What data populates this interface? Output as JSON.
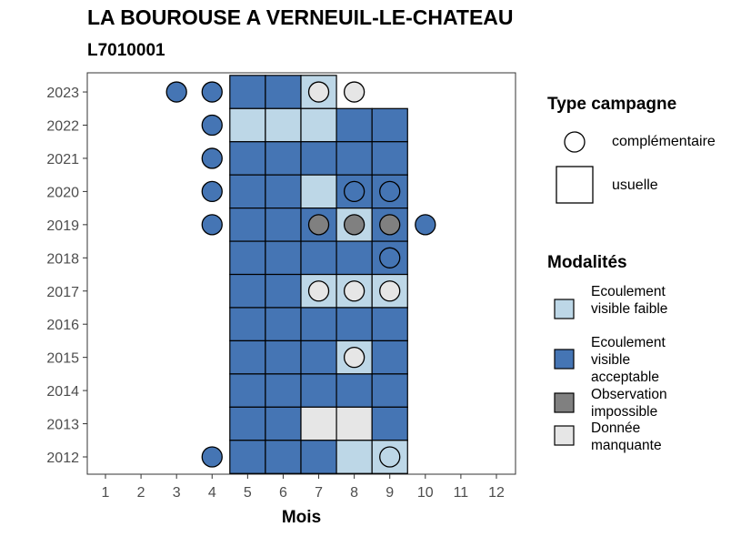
{
  "title": "LA BOUROUSE A VERNEUIL-LE-CHATEAU",
  "subtitle": "L7010001",
  "colors": {
    "faible": "#bdd7e7",
    "acceptable": "#4575b4",
    "impossible": "#808080",
    "manquante": "#e6e6e6"
  },
  "legend": {
    "type_title": "Type campagne",
    "type_items": [
      {
        "key": "complementaire",
        "shape": "circle",
        "label": "complémentaire"
      },
      {
        "key": "usuelle",
        "shape": "square",
        "label": "usuelle"
      }
    ],
    "mod_title": "Modalités",
    "mod_items": [
      {
        "key": "faible",
        "label": "Ecoulement visible faible"
      },
      {
        "key": "acceptable",
        "label": "Ecoulement visible acceptable"
      },
      {
        "key": "impossible",
        "label": "Observation impossible"
      },
      {
        "key": "manquante",
        "label": "Donnée manquante"
      }
    ]
  },
  "chart_data": {
    "type": "heatmap",
    "xlabel": "Mois",
    "ylabel": "",
    "x_ticks": [
      1,
      2,
      3,
      4,
      5,
      6,
      7,
      8,
      9,
      10,
      11,
      12
    ],
    "y_ticks": [
      2012,
      2013,
      2014,
      2015,
      2016,
      2017,
      2018,
      2019,
      2020,
      2021,
      2022,
      2023
    ],
    "grid": false,
    "legend_position": "right",
    "usuelle": [
      {
        "year": 2023,
        "month": 5,
        "mod": "acceptable"
      },
      {
        "year": 2023,
        "month": 6,
        "mod": "acceptable"
      },
      {
        "year": 2023,
        "month": 7,
        "mod": "faible"
      },
      {
        "year": 2022,
        "month": 5,
        "mod": "faible"
      },
      {
        "year": 2022,
        "month": 6,
        "mod": "faible"
      },
      {
        "year": 2022,
        "month": 7,
        "mod": "faible"
      },
      {
        "year": 2022,
        "month": 8,
        "mod": "acceptable"
      },
      {
        "year": 2022,
        "month": 9,
        "mod": "acceptable"
      },
      {
        "year": 2021,
        "month": 5,
        "mod": "acceptable"
      },
      {
        "year": 2021,
        "month": 6,
        "mod": "acceptable"
      },
      {
        "year": 2021,
        "month": 7,
        "mod": "acceptable"
      },
      {
        "year": 2021,
        "month": 8,
        "mod": "acceptable"
      },
      {
        "year": 2021,
        "month": 9,
        "mod": "acceptable"
      },
      {
        "year": 2020,
        "month": 5,
        "mod": "acceptable"
      },
      {
        "year": 2020,
        "month": 6,
        "mod": "acceptable"
      },
      {
        "year": 2020,
        "month": 7,
        "mod": "faible"
      },
      {
        "year": 2020,
        "month": 8,
        "mod": "acceptable"
      },
      {
        "year": 2020,
        "month": 9,
        "mod": "acceptable"
      },
      {
        "year": 2019,
        "month": 5,
        "mod": "acceptable"
      },
      {
        "year": 2019,
        "month": 6,
        "mod": "acceptable"
      },
      {
        "year": 2019,
        "month": 7,
        "mod": "acceptable"
      },
      {
        "year": 2019,
        "month": 8,
        "mod": "faible"
      },
      {
        "year": 2019,
        "month": 9,
        "mod": "acceptable"
      },
      {
        "year": 2018,
        "month": 5,
        "mod": "acceptable"
      },
      {
        "year": 2018,
        "month": 6,
        "mod": "acceptable"
      },
      {
        "year": 2018,
        "month": 7,
        "mod": "acceptable"
      },
      {
        "year": 2018,
        "month": 8,
        "mod": "acceptable"
      },
      {
        "year": 2018,
        "month": 9,
        "mod": "acceptable"
      },
      {
        "year": 2017,
        "month": 5,
        "mod": "acceptable"
      },
      {
        "year": 2017,
        "month": 6,
        "mod": "acceptable"
      },
      {
        "year": 2017,
        "month": 7,
        "mod": "faible"
      },
      {
        "year": 2017,
        "month": 8,
        "mod": "faible"
      },
      {
        "year": 2017,
        "month": 9,
        "mod": "faible"
      },
      {
        "year": 2016,
        "month": 5,
        "mod": "acceptable"
      },
      {
        "year": 2016,
        "month": 6,
        "mod": "acceptable"
      },
      {
        "year": 2016,
        "month": 7,
        "mod": "acceptable"
      },
      {
        "year": 2016,
        "month": 8,
        "mod": "acceptable"
      },
      {
        "year": 2016,
        "month": 9,
        "mod": "acceptable"
      },
      {
        "year": 2015,
        "month": 5,
        "mod": "acceptable"
      },
      {
        "year": 2015,
        "month": 6,
        "mod": "acceptable"
      },
      {
        "year": 2015,
        "month": 7,
        "mod": "acceptable"
      },
      {
        "year": 2015,
        "month": 8,
        "mod": "faible"
      },
      {
        "year": 2015,
        "month": 9,
        "mod": "acceptable"
      },
      {
        "year": 2014,
        "month": 5,
        "mod": "acceptable"
      },
      {
        "year": 2014,
        "month": 6,
        "mod": "acceptable"
      },
      {
        "year": 2014,
        "month": 7,
        "mod": "acceptable"
      },
      {
        "year": 2014,
        "month": 8,
        "mod": "acceptable"
      },
      {
        "year": 2014,
        "month": 9,
        "mod": "acceptable"
      },
      {
        "year": 2013,
        "month": 5,
        "mod": "acceptable"
      },
      {
        "year": 2013,
        "month": 6,
        "mod": "acceptable"
      },
      {
        "year": 2013,
        "month": 7,
        "mod": "manquante"
      },
      {
        "year": 2013,
        "month": 8,
        "mod": "manquante"
      },
      {
        "year": 2013,
        "month": 9,
        "mod": "acceptable"
      },
      {
        "year": 2012,
        "month": 5,
        "mod": "acceptable"
      },
      {
        "year": 2012,
        "month": 6,
        "mod": "acceptable"
      },
      {
        "year": 2012,
        "month": 7,
        "mod": "acceptable"
      },
      {
        "year": 2012,
        "month": 8,
        "mod": "faible"
      },
      {
        "year": 2012,
        "month": 9,
        "mod": "faible"
      }
    ],
    "complementaire": [
      {
        "year": 2023,
        "month": 3,
        "mod": "acceptable"
      },
      {
        "year": 2023,
        "month": 4,
        "mod": "acceptable"
      },
      {
        "year": 2023,
        "month": 7,
        "mod": "manquante"
      },
      {
        "year": 2023,
        "month": 8,
        "mod": "manquante"
      },
      {
        "year": 2022,
        "month": 4,
        "mod": "acceptable"
      },
      {
        "year": 2021,
        "month": 4,
        "mod": "acceptable"
      },
      {
        "year": 2020,
        "month": 4,
        "mod": "acceptable"
      },
      {
        "year": 2020,
        "month": 8,
        "mod": "acceptable"
      },
      {
        "year": 2020,
        "month": 9,
        "mod": "acceptable"
      },
      {
        "year": 2019,
        "month": 4,
        "mod": "acceptable"
      },
      {
        "year": 2019,
        "month": 7,
        "mod": "impossible"
      },
      {
        "year": 2019,
        "month": 8,
        "mod": "impossible"
      },
      {
        "year": 2019,
        "month": 9,
        "mod": "impossible"
      },
      {
        "year": 2019,
        "month": 10,
        "mod": "acceptable"
      },
      {
        "year": 2018,
        "month": 9,
        "mod": "acceptable"
      },
      {
        "year": 2017,
        "month": 7,
        "mod": "manquante"
      },
      {
        "year": 2017,
        "month": 8,
        "mod": "manquante"
      },
      {
        "year": 2017,
        "month": 9,
        "mod": "manquante"
      },
      {
        "year": 2015,
        "month": 8,
        "mod": "manquante"
      },
      {
        "year": 2012,
        "month": 4,
        "mod": "acceptable"
      },
      {
        "year": 2012,
        "month": 9,
        "mod": "faible"
      }
    ]
  }
}
